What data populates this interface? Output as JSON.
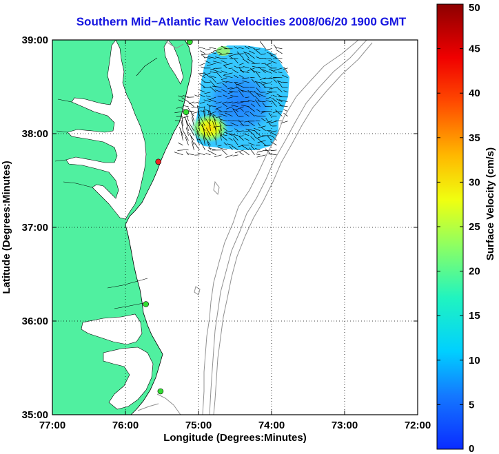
{
  "title": "Southern Mid−Atlantic Raw Velocities 2008/06/20 1900 GMT",
  "x_axis": {
    "label": "Longitude (Degrees:Minutes)",
    "ticks": [
      "77:00",
      "76:00",
      "75:00",
      "74:00",
      "73:00",
      "72:00"
    ]
  },
  "y_axis": {
    "label": "Latitude (Degrees:Minutes)",
    "ticks": [
      "39:00",
      "38:00",
      "37:00",
      "36:00",
      "35:00"
    ]
  },
  "colorbar": {
    "label": "Surface Velocity (cm/s)",
    "ticks": [
      "0",
      "5",
      "10",
      "15",
      "20",
      "25",
      "30",
      "35",
      "40",
      "45",
      "50"
    ],
    "min": 0,
    "max": 50,
    "colormap": "jet"
  },
  "colors": {
    "land": "#50f0a0",
    "contour": "#909090",
    "title": "#1515e0",
    "station_active": "#33dd33",
    "station_inactive": "#ee2222"
  },
  "chart_data": {
    "type": "heatmap",
    "description_units": "longitude/latitude in degrees (west negative), speed in cm/s",
    "lon_range": [
      -77,
      -72
    ],
    "lat_range": [
      35,
      39
    ],
    "grid": true,
    "stations": [
      {
        "lon": -75.12,
        "lat": 38.98,
        "status": "active"
      },
      {
        "lon": -75.17,
        "lat": 38.23,
        "status": "active"
      },
      {
        "lon": -75.55,
        "lat": 37.7,
        "status": "inactive"
      },
      {
        "lon": -75.72,
        "lat": 36.18,
        "status": "active"
      },
      {
        "lon": -75.52,
        "lat": 35.25,
        "status": "active"
      }
    ],
    "velocity_field": {
      "lon_range": [
        -75.25,
        -73.75
      ],
      "lat_range": [
        37.75,
        38.95
      ],
      "speed_range": [
        3,
        30
      ],
      "peak_region": {
        "lon": -74.95,
        "lat": 38.0,
        "speed": 28
      }
    }
  }
}
